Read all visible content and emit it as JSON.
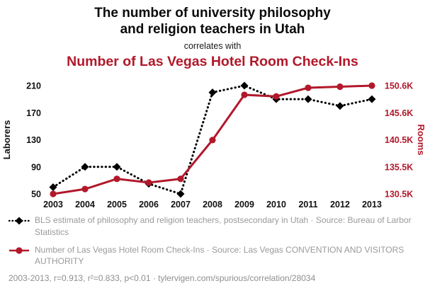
{
  "title": {
    "line1": "The number of university philosophy",
    "line2": "and religion teachers in Utah",
    "connector": "correlates with",
    "red_title": "Number of Las Vegas Hotel Room Check-Ins"
  },
  "colors": {
    "accent_red": "#b2182b",
    "series_black": "#000000",
    "legend_gray": "#9a9a9a"
  },
  "chart_data": {
    "type": "line",
    "x": [
      2003,
      2004,
      2005,
      2006,
      2007,
      2008,
      2009,
      2010,
      2011,
      2012,
      2013
    ],
    "x_ticks": [
      "2003",
      "2004",
      "2005",
      "2006",
      "2007",
      "2008",
      "2009",
      "2010",
      "2011",
      "2012",
      "2013"
    ],
    "series": [
      {
        "name": "BLS estimate of philosophy and religion teachers, postsecondary in Utah",
        "axis": "left",
        "color": "#000000",
        "style": "dotted-diamond",
        "values": [
          60,
          90,
          90,
          65,
          50,
          200,
          210,
          190,
          190,
          180,
          190
        ]
      },
      {
        "name": "Number of Las Vegas Hotel Room Check-Ins",
        "axis": "right",
        "color": "#b2182b",
        "style": "solid-circle",
        "unit": "K",
        "values": [
          130.5,
          131.4,
          133.3,
          132.6,
          133.3,
          140.5,
          148.9,
          148.6,
          150.2,
          150.4,
          150.6
        ]
      }
    ],
    "left_axis": {
      "label": "Laborers",
      "ticks": [
        "50",
        "90",
        "130",
        "170",
        "210"
      ],
      "range": [
        50,
        210
      ]
    },
    "right_axis": {
      "label": "Rooms",
      "ticks": [
        "130.5K",
        "135.5K",
        "140.5K",
        "145.6K",
        "150.6K"
      ],
      "range": [
        130.5,
        150.6
      ]
    },
    "grid": false,
    "legend_position": "bottom"
  },
  "legend": {
    "item1": "BLS estimate of philosophy and religion teachers, postsecondary in Utah · Source: Bureau of Larbor Statistics",
    "item2": "Number of Las Vegas Hotel Room Check-Ins · Source: Las Vegas CONVENTION AND VISITORS AUTHORITY"
  },
  "footer": "2003-2013, r=0.913, r²=0.833, p<0.01 · tylervigen.com/spurious/correlation/28034"
}
